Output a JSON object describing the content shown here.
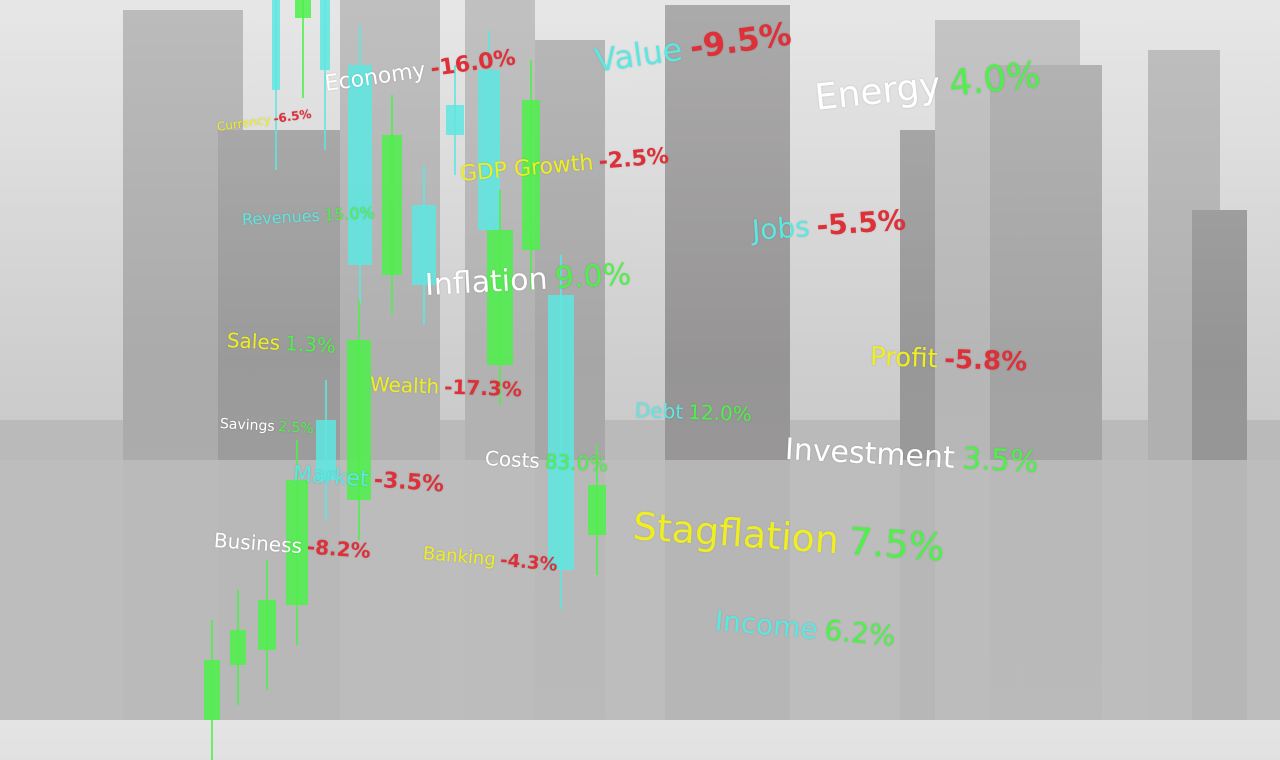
{
  "colors": {
    "cyan": "#5ee6e0",
    "red": "#de3038",
    "green": "#4ef04a",
    "yellow": "#eeee22",
    "white": "#ffffff"
  },
  "labels": [
    {
      "word": "Value",
      "value": "-9.5%",
      "word_color": "cyan",
      "value_color": "red"
    },
    {
      "word": "Economy",
      "value": "-16.0%",
      "word_color": "white",
      "value_color": "red"
    },
    {
      "word": "Currency",
      "value": "-6.5%",
      "word_color": "yellow",
      "value_color": "red"
    },
    {
      "word": "GDP Growth",
      "value": "-2.5%",
      "word_color": "yellow",
      "value_color": "red"
    },
    {
      "word": "Energy",
      "value": "4.0%",
      "word_color": "white",
      "value_color": "green"
    },
    {
      "word": "Revenues",
      "value": "15.0%",
      "word_color": "cyan",
      "value_color": "green"
    },
    {
      "word": "Jobs",
      "value": "-5.5%",
      "word_color": "cyan",
      "value_color": "red"
    },
    {
      "word": "Inflation",
      "value": "9.0%",
      "word_color": "white",
      "value_color": "green"
    },
    {
      "word": "Sales",
      "value": "1.3%",
      "word_color": "yellow",
      "value_color": "green"
    },
    {
      "word": "Profit",
      "value": "-5.8%",
      "word_color": "yellow",
      "value_color": "red"
    },
    {
      "word": "Wealth",
      "value": "-17.3%",
      "word_color": "yellow",
      "value_color": "red"
    },
    {
      "word": "Debt",
      "value": "12.0%",
      "word_color": "cyan",
      "value_color": "green"
    },
    {
      "word": "Savings",
      "value": "2.5%",
      "word_color": "white",
      "value_color": "green"
    },
    {
      "word": "Investment",
      "value": "3.5%",
      "word_color": "white",
      "value_color": "green"
    },
    {
      "word": "Costs",
      "value": "83.0%",
      "word_color": "white",
      "value_color": "green"
    },
    {
      "word": "Market",
      "value": "-3.5%",
      "word_color": "cyan",
      "value_color": "red"
    },
    {
      "word": "Stagflation",
      "value": "7.5%",
      "word_color": "yellow",
      "value_color": "green"
    },
    {
      "word": "Business",
      "value": "-8.2%",
      "word_color": "white",
      "value_color": "red"
    },
    {
      "word": "Banking",
      "value": "-4.3%",
      "word_color": "yellow",
      "value_color": "red"
    },
    {
      "word": "Income",
      "value": "6.2%",
      "word_color": "cyan",
      "value_color": "green"
    }
  ]
}
